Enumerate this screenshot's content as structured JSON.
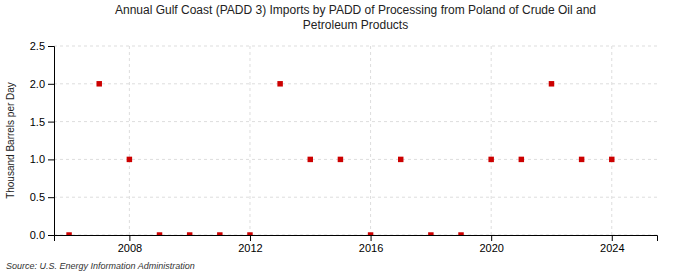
{
  "chart_data": {
    "type": "scatter",
    "title": "Annual Gulf Coast (PADD 3) Imports by PADD of Processing from Poland of Crude Oil and\nPetroleum Products",
    "ylabel": "Thousand Barrels per Day",
    "annotations": [
      "Source: U.S. Energy Information Administration"
    ],
    "x": [
      2006,
      2007,
      2008,
      2009,
      2010,
      2011,
      2012,
      2013,
      2014,
      2015,
      2016,
      2017,
      2018,
      2019,
      2020,
      2021,
      2022,
      2023,
      2024
    ],
    "values": [
      0,
      2.0,
      1.0,
      0,
      0,
      0,
      0,
      2.0,
      1.0,
      1.0,
      0,
      1.0,
      0,
      0,
      1.0,
      1.0,
      2.0,
      1.0,
      1.0
    ],
    "color": "#cc0000",
    "marker": "square",
    "xlim": [
      2005.5,
      2025.5
    ],
    "xticks": [
      2008,
      2012,
      2016,
      2020,
      2024
    ],
    "ylim": [
      0,
      2.5
    ],
    "yticks": [
      {
        "value": 0.0,
        "label": "0.0"
      },
      0.5,
      {
        "value": 1.0,
        "label": "1.0"
      },
      1.5,
      {
        "value": 2.0,
        "label": "2.0"
      },
      2.5
    ],
    "grid": true
  }
}
